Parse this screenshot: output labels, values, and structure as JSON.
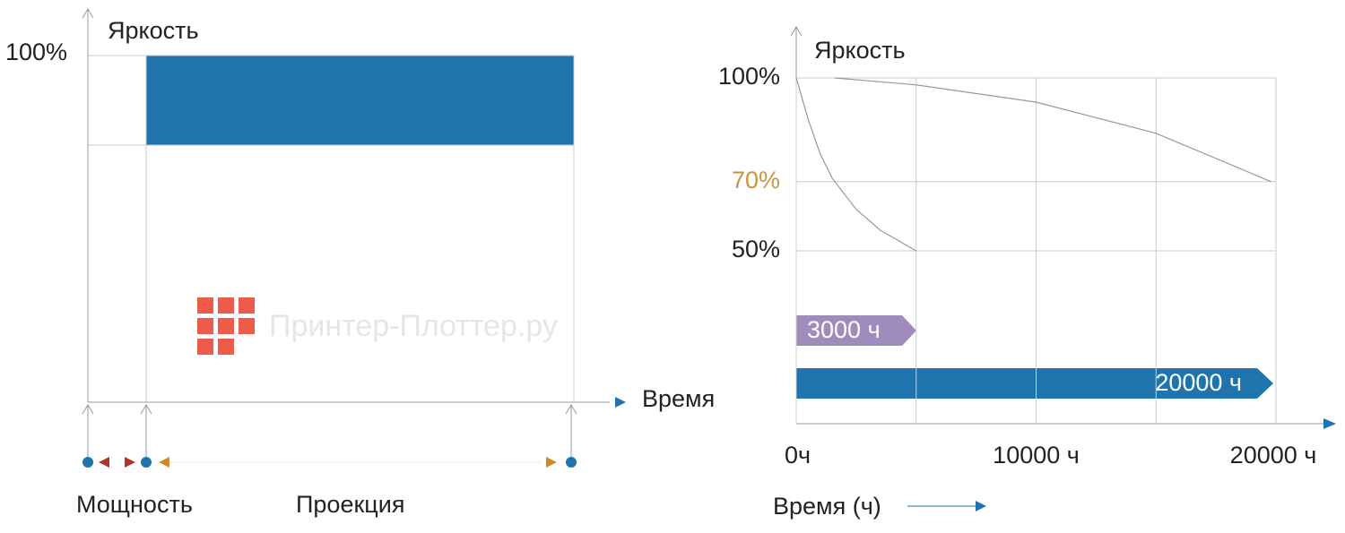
{
  "left": {
    "y_label": "Яркость",
    "y_tick": "100%",
    "x_label": "Время",
    "labels": [
      "Мощность",
      "Проекция"
    ]
  },
  "watermark": "Принтер-Плоттер.ру",
  "chart_data": {
    "type": "line",
    "y_label": "Яркость",
    "x_label": "Время (ч)",
    "xlim": [
      0,
      20000
    ],
    "ylim": [
      0,
      100
    ],
    "xticks": [
      {
        "value": 0,
        "label": "0ч"
      },
      {
        "value": 10000,
        "label": "10000 ч"
      },
      {
        "value": 20000,
        "label": "20000 ч"
      }
    ],
    "xgrid": [
      0,
      5000,
      10000,
      15000,
      20000
    ],
    "yticks": [
      {
        "value": 100,
        "label": "100%"
      },
      {
        "value": 70,
        "label": "70%"
      },
      {
        "value": 50,
        "label": "50%"
      }
    ],
    "ytick_colors": [
      "#222222",
      "#c8963e",
      "#222222"
    ],
    "grid": true,
    "series": [
      {
        "color": "#999999",
        "x": [
          0,
          500,
          1000,
          1500,
          2500,
          3500,
          5000
        ],
        "values": [
          100,
          88,
          78,
          71,
          62,
          56,
          50
        ]
      },
      {
        "color": "#999999",
        "x": [
          1600,
          5000,
          10000,
          15000,
          19800
        ],
        "values": [
          100,
          98,
          93,
          84,
          70
        ]
      }
    ],
    "annotations": [
      {
        "text": "3000 ч",
        "color": "#a08cbc"
      },
      {
        "text": "20000 ч",
        "color": "#1f74ad"
      }
    ]
  }
}
